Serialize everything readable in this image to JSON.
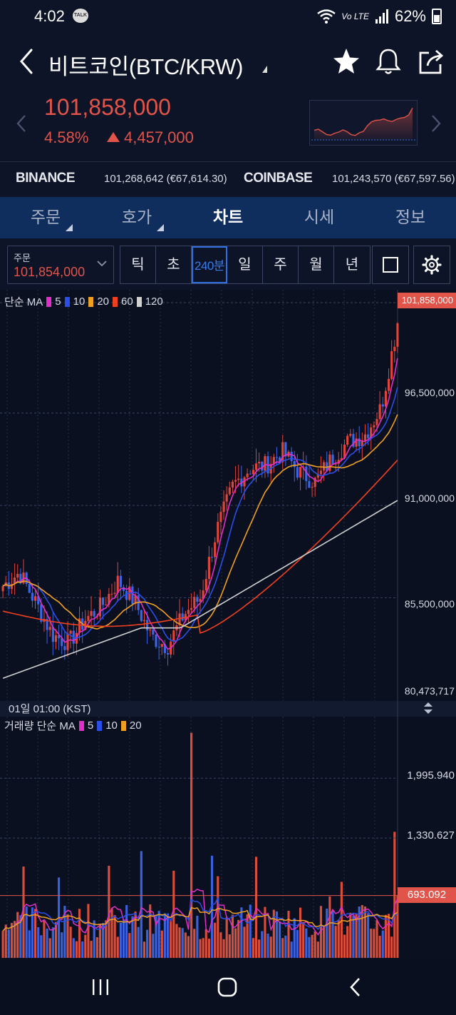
{
  "status_bar": {
    "time": "4:02",
    "talk_badge": "TALK",
    "network": "Vo LTE",
    "battery": "62%"
  },
  "header": {
    "title": "비트코인(BTC/KRW)",
    "icons": [
      "back-chevron-icon",
      "star-icon",
      "bell-icon",
      "share-icon"
    ]
  },
  "ticker": {
    "price": "101,858,000",
    "change_pct": "4.58%",
    "change_abs": "4,457,000",
    "direction": "up",
    "color_up": "#e0544a"
  },
  "exchanges": [
    {
      "name": "BINANCE",
      "value": "101,268,642 (€67,614.30)"
    },
    {
      "name": "COINBASE",
      "value": "101,243,570 (€67,597.56)"
    }
  ],
  "tabs": [
    {
      "label": "주문",
      "has_menu": true
    },
    {
      "label": "호가",
      "has_menu": true
    },
    {
      "label": "차트",
      "active": true
    },
    {
      "label": "시세"
    },
    {
      "label": "정보"
    }
  ],
  "toolbar": {
    "order_label": "주문",
    "order_value": "101,854,000",
    "periods": [
      "틱",
      "초",
      "240분",
      "일",
      "주",
      "월",
      "년"
    ],
    "selected_period": "240분"
  },
  "main_chart": {
    "legend_title": "단순 MA",
    "ma_labels": [
      "5",
      "10",
      "20",
      "60",
      "120"
    ],
    "ma_colors": [
      "#e030c8",
      "#2a4fe8",
      "#f0a020",
      "#f04020",
      "#d0d0d0"
    ],
    "y_labels": [
      "96,500,000",
      "91,000,000",
      "85,500,000"
    ],
    "current_price_tag": "101,858,000",
    "low_label": "80,473,717",
    "time_label": "01일 01:00 (KST)"
  },
  "volume_chart": {
    "legend_title": "거래량 단순 MA",
    "ma_labels": [
      "5",
      "10",
      "20"
    ],
    "ma_colors": [
      "#e030c8",
      "#2a4fe8",
      "#f0a020"
    ],
    "y_labels": [
      "1,995.940",
      "1,330.627"
    ],
    "current_volume_tag": "693.092"
  },
  "chart_data": {
    "type": "candlestick",
    "title": "",
    "interval": "240분",
    "y_axis_ticks": [
      85500000,
      91000000,
      96500000
    ],
    "current_price": 101858000,
    "visible_low": 80473717,
    "close_trend": [
      86200000,
      87000000,
      85200000,
      83300000,
      82800000,
      84200000,
      85000000,
      86500000,
      85300000,
      83200000,
      82600000,
      84500000,
      85500000,
      89500000,
      92200000,
      93200000,
      93400000,
      94200000,
      93000000,
      92400000,
      93800000,
      94800000,
      95200000,
      96800000,
      101858000
    ],
    "volume_ticks": [
      1330.627,
      1995.94
    ],
    "current_volume": 693.092
  }
}
